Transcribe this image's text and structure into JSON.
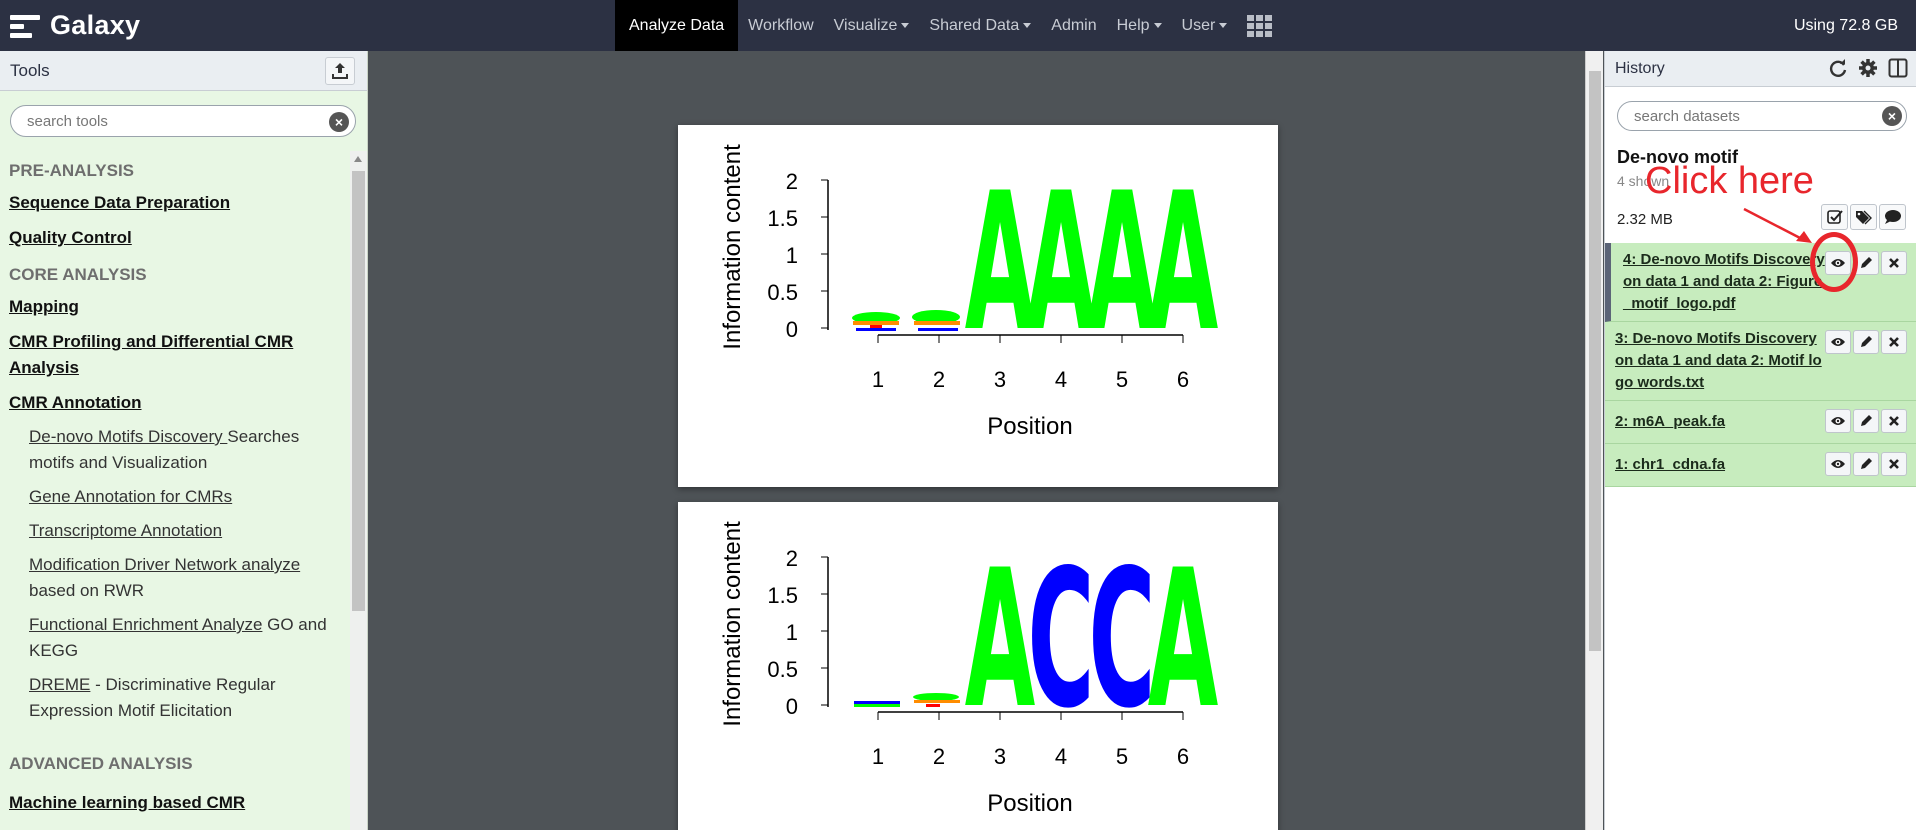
{
  "masthead": {
    "brand": "Galaxy",
    "nav": [
      {
        "label": "Analyze Data",
        "active": true,
        "dropdown": false
      },
      {
        "label": "Workflow",
        "active": false,
        "dropdown": false
      },
      {
        "label": "Visualize",
        "active": false,
        "dropdown": true
      },
      {
        "label": "Shared Data",
        "active": false,
        "dropdown": true
      },
      {
        "label": "Admin",
        "active": false,
        "dropdown": false
      },
      {
        "label": "Help",
        "active": false,
        "dropdown": true
      },
      {
        "label": "User",
        "active": false,
        "dropdown": true
      }
    ],
    "apps_icon": "grid-icon",
    "quota": "Using 72.8 GB"
  },
  "tool_panel": {
    "title": "Tools",
    "upload_icon": "upload-icon",
    "search_placeholder": "search tools",
    "sections": [
      {
        "title": "PRE-ANALYSIS",
        "categories": [
          "Sequence Data Preparation",
          "Quality Control"
        ]
      },
      {
        "title": "CORE ANALYSIS",
        "categories": [
          "Mapping",
          "CMR Profiling and Differential CMR Analysis",
          "CMR Annotation"
        ]
      }
    ],
    "tools": [
      {
        "name": "De-novo Motifs Discovery ",
        "desc": "Searches motifs and Visualization"
      },
      {
        "name": "Gene Annotation for CMRs",
        "desc": ""
      },
      {
        "name": "Transcriptome Annotation",
        "desc": ""
      },
      {
        "name": "Modification Driver Network analyze",
        "desc": " based on RWR"
      },
      {
        "name": "Functional Enrichment Analyze",
        "desc": " GO and KEGG"
      },
      {
        "name": "DREME",
        "desc": " - Discriminative Regular Expression Motif Elicitation"
      }
    ],
    "advanced": {
      "title": "ADVANCED ANALYSIS",
      "categories": [
        "Machine learning based CMR"
      ]
    }
  },
  "center": {
    "logos": [
      {
        "ylabel": "Information content",
        "xlabel": "Position",
        "yticks": [
          "2",
          "1.5",
          "1",
          "0.5",
          "0"
        ],
        "xticks": [
          "1",
          "2",
          "3",
          "4",
          "5",
          "6"
        ],
        "letters": [
          "A",
          "A",
          "A",
          "A"
        ],
        "letter_colors": [
          "#00ff00",
          "#00ff00",
          "#00ff00",
          "#00ff00"
        ]
      },
      {
        "ylabel": "Information content",
        "xlabel": "Position",
        "yticks": [
          "2",
          "1.5",
          "1",
          "0.5",
          "0"
        ],
        "xticks": [
          "1",
          "2",
          "3",
          "4",
          "5",
          "6"
        ],
        "letters": [
          "A",
          "C",
          "C",
          "A"
        ],
        "letter_colors": [
          "#00ff00",
          "#0000ff",
          "#0000ff",
          "#00ff00"
        ]
      }
    ]
  },
  "history": {
    "title": "History",
    "search_placeholder": "search datasets",
    "name": "De-novo motif",
    "shown": "4 shown",
    "size": "2.32 MB",
    "datasets": [
      {
        "title": "4: De-novo Motifs Discovery on data 1 and data 2: Figure_motif_logo.pdf",
        "current": true
      },
      {
        "title": "3: De-novo Motifs Discovery on data 1 and data 2: Motif logo words.txt",
        "current": false
      },
      {
        "title": "2: m6A_peak.fa",
        "current": false
      },
      {
        "title": "1: chr1_cdna.fa",
        "current": false
      }
    ]
  },
  "annotation": {
    "text": "Click here",
    "color": "#e8262c"
  }
}
